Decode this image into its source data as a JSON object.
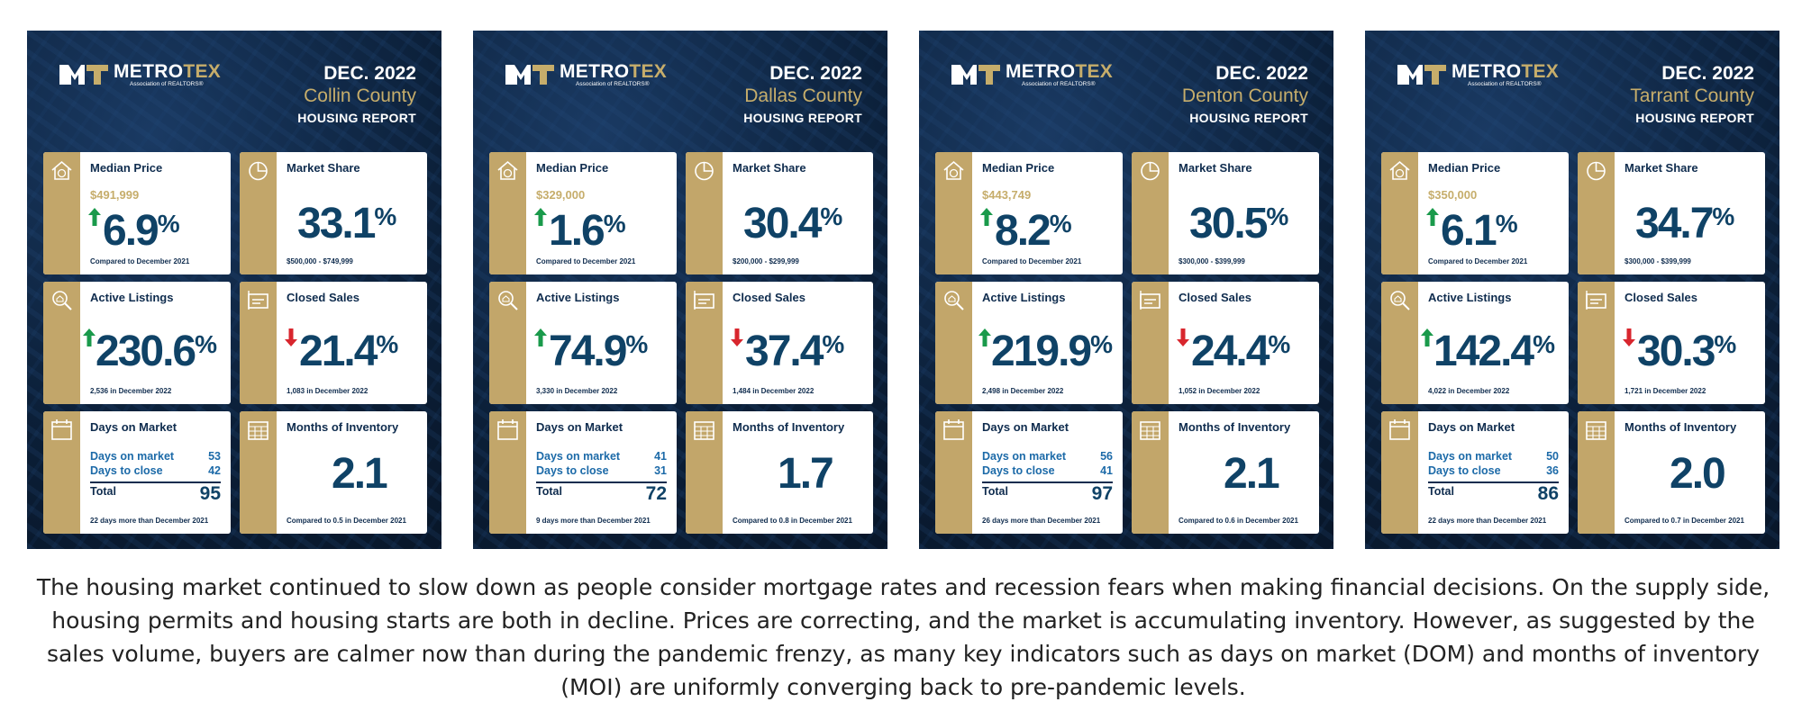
{
  "brand": {
    "name_part1": "METRO",
    "name_part2": "TEX",
    "tagline": "Association of REALTORS®"
  },
  "labels": {
    "report": "HOUSING REPORT",
    "median_price": "Median Price",
    "market_share": "Market Share",
    "active_listings": "Active Listings",
    "closed_sales": "Closed Sales",
    "days_on_market": "Days on Market",
    "months_inventory": "Months of Inventory",
    "dom_row": "Days on market",
    "dtc_row": "Days to close",
    "total": "Total",
    "compared": "Compared to December 2021"
  },
  "colors": {
    "navy": "#0b1f38",
    "gold": "#c2a66a",
    "value_blue": "#0f4266",
    "up_green": "#1a9a4b",
    "down_red": "#d8262e"
  },
  "panels": [
    {
      "date": "DEC. 2022",
      "county": "Collin County",
      "median_price": "$491,999",
      "median_change": "6.9",
      "median_dir": "up",
      "market_share": "33.1",
      "market_share_range": "$500,000 - $749,999",
      "active_change": "230.6",
      "active_dir": "up",
      "active_note": "2,536 in December 2022",
      "closed_change": "21.4",
      "closed_dir": "down",
      "closed_note": "1,083 in December 2022",
      "dom": "53",
      "dtc": "42",
      "dom_total": "95",
      "dom_note": "22 days more than December 2021",
      "moi": "2.1",
      "moi_note": "Compared to 0.5 in December 2021"
    },
    {
      "date": "DEC. 2022",
      "county": "Dallas County",
      "median_price": "$329,000",
      "median_change": "1.6",
      "median_dir": "up",
      "market_share": "30.4",
      "market_share_range": "$200,000 - $299,999",
      "active_change": "74.9",
      "active_dir": "up",
      "active_note": "3,330 in December 2022",
      "closed_change": "37.4",
      "closed_dir": "down",
      "closed_note": "1,484 in December 2022",
      "dom": "41",
      "dtc": "31",
      "dom_total": "72",
      "dom_note": "9 days more than December 2021",
      "moi": "1.7",
      "moi_note": "Compared to 0.8 in December 2021"
    },
    {
      "date": "DEC. 2022",
      "county": "Denton County",
      "median_price": "$443,749",
      "median_change": "8.2",
      "median_dir": "up",
      "market_share": "30.5",
      "market_share_range": "$300,000 - $399,999",
      "active_change": "219.9",
      "active_dir": "up",
      "active_note": "2,498 in December 2022",
      "closed_change": "24.4",
      "closed_dir": "down",
      "closed_note": "1,052 in December 2022",
      "dom": "56",
      "dtc": "41",
      "dom_total": "97",
      "dom_note": "26 days more than December 2021",
      "moi": "2.1",
      "moi_note": "Compared to 0.6 in December 2021"
    },
    {
      "date": "DEC. 2022",
      "county": "Tarrant County",
      "median_price": "$350,000",
      "median_change": "6.1",
      "median_dir": "up",
      "market_share": "34.7",
      "market_share_range": "$300,000 - $399,999",
      "active_change": "142.4",
      "active_dir": "up",
      "active_note": "4,022 in December 2022",
      "closed_change": "30.3",
      "closed_dir": "down",
      "closed_note": "1,721 in December 2022",
      "dom": "50",
      "dtc": "36",
      "dom_total": "86",
      "dom_note": "22 days more than December 2021",
      "moi": "2.0",
      "moi_note": "Compared to 0.7 in December 2021"
    }
  ],
  "summary": "The housing market continued to slow down as people consider mortgage rates and recession fears when making financial decisions. On the supply side, housing permits and housing starts are both in decline. Prices are correcting, and the market is accumulating inventory. However, as suggested by the sales volume, buyers are calmer now than during the pandemic frenzy, as many key indicators such as days on market (DOM) and months of inventory (MOI) are uniformly converging back to pre-pandemic levels."
}
